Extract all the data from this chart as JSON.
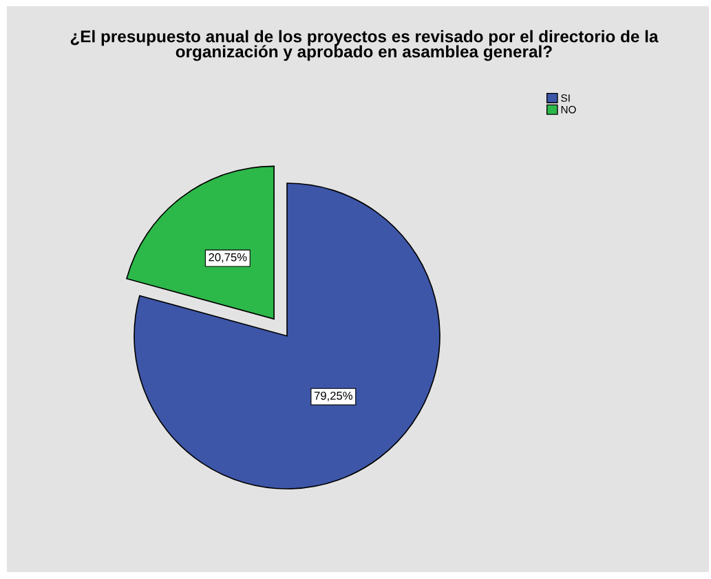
{
  "chart_data": {
    "type": "pie",
    "title": "¿El presupuesto anual de los proyectos es revisado por el directorio de la organización y aprobado en asamblea general?",
    "categories": [
      "SI",
      "NO"
    ],
    "values": [
      79.25,
      20.75
    ],
    "colors": [
      "#3d56a8",
      "#2db84a"
    ],
    "value_labels": [
      "79,25%",
      "20,75%"
    ],
    "legend": "top right"
  }
}
